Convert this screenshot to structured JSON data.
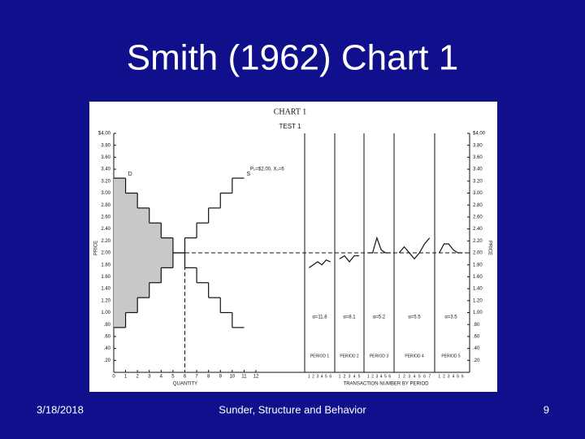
{
  "slide": {
    "title": "Smith (1962) Chart 1",
    "date": "3/18/2018",
    "footer": "Sunder, Structure and Behavior",
    "page": "9"
  },
  "chart_data": {
    "type": "step",
    "title": "CHART 1",
    "subtitle": "TEST 1",
    "y_label": "PRICE",
    "x_label": "QUANTITY",
    "x2_label": "TRANSACTION NUMBER BY PERIOD",
    "annotation": "P₀=$2.00, X₀=6",
    "equilibrium": {
      "price": 2,
      "quantity": 6
    },
    "ylim": [
      0,
      4
    ],
    "yticks": [
      {
        "value": 0.2,
        "label": ".20"
      },
      {
        "value": 0.4,
        "label": ".40"
      },
      {
        "value": 0.6,
        "label": ".60"
      },
      {
        "value": 0.8,
        "label": ".80"
      },
      {
        "value": 1,
        "label": "1.00"
      },
      {
        "value": 1.2,
        "label": "1.20"
      },
      {
        "value": 1.4,
        "label": "1.40"
      },
      {
        "value": 1.6,
        "label": "1.60"
      },
      {
        "value": 1.8,
        "label": "1.80"
      },
      {
        "value": 2,
        "label": "2.00"
      },
      {
        "value": 2.2,
        "label": "2.20"
      },
      {
        "value": 2.4,
        "label": "2.40"
      },
      {
        "value": 2.6,
        "label": "2.60"
      },
      {
        "value": 2.8,
        "label": "2.80"
      },
      {
        "value": 3,
        "label": "3.00"
      },
      {
        "value": 3.2,
        "label": "3.20"
      },
      {
        "value": 3.4,
        "label": "3.40"
      },
      {
        "value": 3.6,
        "label": "3.60"
      },
      {
        "value": 3.8,
        "label": "3.80"
      },
      {
        "value": 4,
        "label": "$4.00"
      }
    ],
    "xlim": [
      0,
      12
    ],
    "xticks": [
      0,
      1,
      2,
      3,
      4,
      5,
      6,
      7,
      8,
      9,
      10,
      11,
      12
    ],
    "series": [
      {
        "name": "D",
        "color": "#111111",
        "values": [
          3.25,
          3.0,
          2.75,
          2.5,
          2.25,
          2.0,
          1.75,
          1.5,
          1.25,
          1.0,
          0.75
        ]
      },
      {
        "name": "S",
        "color": "#111111",
        "values": [
          0.75,
          1.0,
          1.25,
          1.5,
          1.75,
          2.0,
          2.25,
          2.5,
          2.75,
          3.0,
          3.25
        ]
      }
    ],
    "periods": [
      {
        "name": "PERIOD 1",
        "alpha": "α=11.8",
        "color": "#111111",
        "x": [
          1,
          2,
          3,
          4,
          5,
          6
        ],
        "values": [
          1.75,
          1.8,
          1.85,
          1.8,
          1.88,
          1.85
        ]
      },
      {
        "name": "PERIOD 2",
        "alpha": "α=8.1",
        "color": "#111111",
        "x": [
          1,
          2,
          3,
          4,
          5
        ],
        "values": [
          1.9,
          1.95,
          1.85,
          1.95,
          1.95
        ]
      },
      {
        "name": "PERIOD 3",
        "alpha": "α=5.2",
        "color": "#111111",
        "x": [
          1,
          2,
          3,
          4,
          5,
          6
        ],
        "values": [
          2.0,
          2.0,
          2.25,
          2.05,
          2.0,
          2.0
        ]
      },
      {
        "name": "PERIOD 4",
        "alpha": "α=5.5",
        "color": "#111111",
        "x": [
          1,
          2,
          3,
          4,
          5,
          6,
          7
        ],
        "values": [
          2.0,
          2.1,
          2.0,
          1.9,
          2.0,
          2.15,
          2.25
        ]
      },
      {
        "name": "PERIOD 5",
        "alpha": "α=3.5",
        "color": "#111111",
        "x": [
          1,
          2,
          3,
          4,
          5,
          6
        ],
        "values": [
          2.0,
          2.15,
          2.15,
          2.05,
          2.0,
          2.0
        ]
      }
    ]
  }
}
